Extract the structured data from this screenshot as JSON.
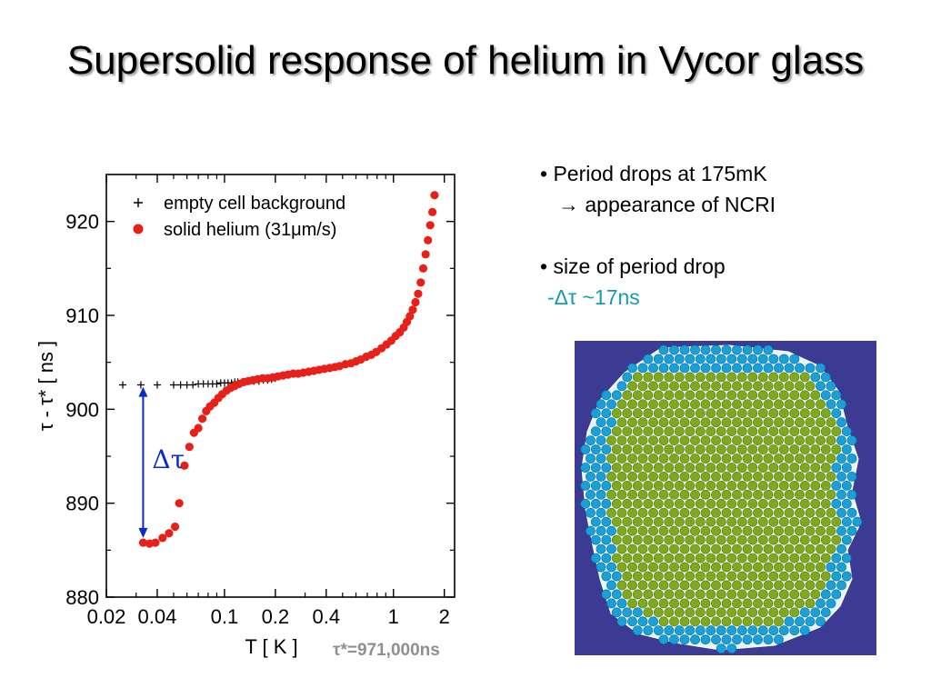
{
  "slide": {
    "title": "Supersolid response of helium in Vycor glass",
    "bullets": {
      "b1_line1": "• Period drops at 175mK",
      "b1_line2": "→ appearance of NCRI",
      "b2_line1": "• size of period drop",
      "b2_line2": "-Δτ ~17ns"
    },
    "tau_star_note": "τ*=971,000ns"
  },
  "chart_data": {
    "type": "scatter",
    "xscale": "log",
    "xlim": [
      0.02,
      2.3
    ],
    "ylim": [
      880,
      925
    ],
    "xlabel": "T [ K ]",
    "ylabel": "τ - τ* [ ns ]",
    "x_ticks": [
      "0.02",
      "0.04",
      "0.1",
      "0.2",
      "0.4",
      "1",
      "2"
    ],
    "y_ticks": [
      "880",
      "890",
      "900",
      "910",
      "920"
    ],
    "legend_position": "top-left",
    "annotation": "Δτ",
    "series": [
      {
        "name": "empty cell background",
        "marker": "plus",
        "color": "#000000",
        "x": [
          0.025,
          0.032,
          0.04,
          0.05,
          0.055,
          0.06,
          0.065,
          0.07,
          0.075,
          0.08,
          0.085,
          0.09,
          0.095,
          0.1,
          0.105,
          0.11,
          0.115,
          0.12,
          0.13,
          0.14,
          0.15,
          0.16,
          0.17,
          0.18,
          0.19,
          0.2
        ],
        "y": [
          902.6,
          902.6,
          902.6,
          902.6,
          902.6,
          902.6,
          902.6,
          902.7,
          902.7,
          902.7,
          902.7,
          902.7,
          902.8,
          902.8,
          902.8,
          902.8,
          902.9,
          902.9,
          902.9,
          903.0,
          903.0,
          903.0,
          903.1,
          903.1,
          903.2,
          903.3
        ]
      },
      {
        "name": "solid helium (31μm/s)",
        "marker": "circle",
        "color": "#e8201a",
        "x": [
          0.033,
          0.036,
          0.039,
          0.043,
          0.047,
          0.051,
          0.054,
          0.058,
          0.062,
          0.066,
          0.07,
          0.074,
          0.078,
          0.082,
          0.087,
          0.092,
          0.097,
          0.103,
          0.109,
          0.115,
          0.122,
          0.13,
          0.138,
          0.147,
          0.157,
          0.168,
          0.18,
          0.193,
          0.207,
          0.222,
          0.238,
          0.255,
          0.273,
          0.293,
          0.315,
          0.338,
          0.363,
          0.39,
          0.42,
          0.45,
          0.48,
          0.52,
          0.56,
          0.6,
          0.64,
          0.69,
          0.74,
          0.79,
          0.85,
          0.91,
          0.97,
          1.03,
          1.09,
          1.15,
          1.2,
          1.25,
          1.3,
          1.35,
          1.4,
          1.45,
          1.5,
          1.55,
          1.6,
          1.65,
          1.7,
          1.75
        ],
        "y": [
          885.8,
          885.7,
          885.8,
          886.3,
          886.8,
          887.5,
          890.0,
          894.0,
          896.0,
          897.5,
          898.0,
          899.0,
          899.8,
          900.3,
          900.7,
          901.2,
          901.6,
          902.0,
          902.3,
          902.5,
          902.7,
          902.9,
          903.0,
          903.1,
          903.2,
          903.3,
          903.3,
          903.4,
          903.5,
          903.6,
          903.7,
          903.8,
          903.8,
          903.9,
          904.0,
          904.1,
          904.2,
          904.3,
          904.4,
          904.5,
          904.6,
          904.8,
          904.9,
          905.1,
          905.3,
          905.6,
          905.8,
          906.1,
          906.5,
          906.9,
          907.3,
          907.8,
          908.2,
          908.7,
          909.3,
          909.9,
          910.6,
          911.4,
          912.3,
          913.5,
          915.0,
          916.5,
          918.0,
          919.6,
          921.0,
          922.8
        ]
      }
    ]
  },
  "figure": {
    "crystal_grain_image": "Vycor pore cross-section with green solid-helium atoms surrounded by blue boundary atoms",
    "colors": {
      "frame": "#3b3b94",
      "pore": "#e6f6f6",
      "inner_atom": "#7fa81c",
      "boundary_atom": "#1aa0d8"
    }
  }
}
